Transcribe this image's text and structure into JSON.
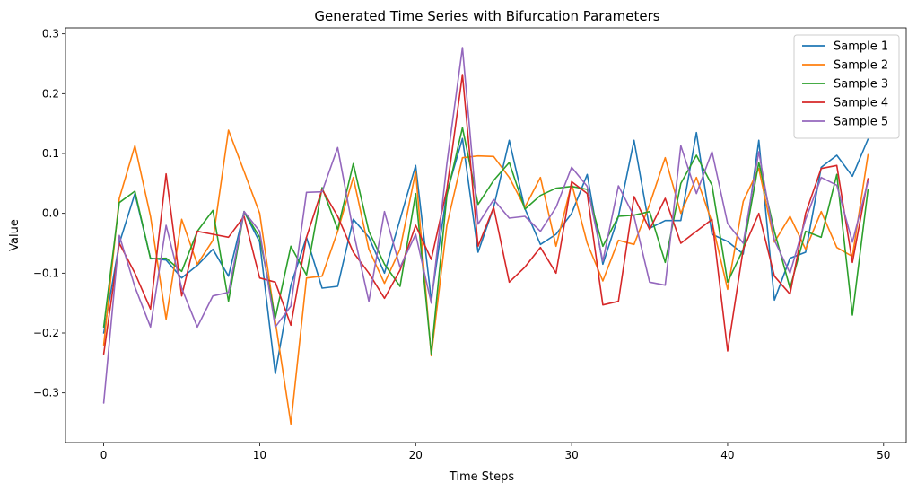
{
  "chart_data": {
    "type": "line",
    "title": "Generated Time Series with Bifurcation Parameters",
    "xlabel": "Time Steps",
    "ylabel": "Value",
    "xlim": [
      -2.45,
      51.45
    ],
    "ylim": [
      -0.383,
      0.31
    ],
    "xticks": [
      0,
      10,
      20,
      30,
      40,
      50
    ],
    "yticks": [
      -0.3,
      -0.2,
      -0.1,
      0.0,
      0.1,
      0.2,
      0.3
    ],
    "xtick_labels": [
      "0",
      "10",
      "20",
      "30",
      "40",
      "50"
    ],
    "ytick_labels": [
      "−0.3",
      "−0.2",
      "−0.1",
      "0.0",
      "0.1",
      "0.2",
      "0.3"
    ],
    "grid": false,
    "legend_position": "top-right",
    "x": [
      0,
      1,
      2,
      3,
      4,
      5,
      6,
      7,
      8,
      9,
      10,
      11,
      12,
      13,
      14,
      15,
      16,
      17,
      18,
      19,
      20,
      21,
      22,
      23,
      24,
      25,
      26,
      27,
      28,
      29,
      30,
      31,
      32,
      33,
      34,
      35,
      36,
      37,
      38,
      39,
      40,
      41,
      42,
      43,
      44,
      45,
      46,
      47,
      48,
      49
    ],
    "series": [
      {
        "name": "Sample 1",
        "color": "#1f77b4",
        "values": [
          -0.2,
          -0.05,
          0.033,
          -0.075,
          -0.078,
          -0.108,
          -0.087,
          -0.06,
          -0.105,
          0.003,
          -0.048,
          -0.268,
          -0.12,
          -0.04,
          -0.125,
          -0.122,
          -0.01,
          -0.04,
          -0.1,
          -0.01,
          0.08,
          -0.145,
          0.035,
          0.125,
          -0.065,
          0.01,
          0.122,
          0.008,
          -0.052,
          -0.035,
          0.0,
          0.065,
          -0.085,
          -0.005,
          0.122,
          -0.025,
          -0.012,
          -0.012,
          0.135,
          -0.035,
          -0.047,
          -0.068,
          0.122,
          -0.145,
          -0.075,
          -0.065,
          0.077,
          0.097,
          0.062,
          0.124
        ]
      },
      {
        "name": "Sample 2",
        "color": "#ff7f0e",
        "values": [
          -0.22,
          0.025,
          0.113,
          -0.005,
          -0.177,
          -0.01,
          -0.085,
          -0.045,
          0.139,
          0.07,
          0.0,
          -0.18,
          -0.352,
          -0.108,
          -0.105,
          -0.03,
          0.06,
          -0.06,
          -0.117,
          -0.06,
          0.07,
          -0.238,
          -0.02,
          0.093,
          0.096,
          0.095,
          0.06,
          0.01,
          0.06,
          -0.055,
          0.05,
          -0.05,
          -0.113,
          -0.045,
          -0.052,
          0.015,
          0.093,
          0.0,
          0.06,
          -0.015,
          -0.127,
          0.02,
          0.075,
          -0.048,
          -0.005,
          -0.06,
          0.003,
          -0.057,
          -0.072,
          0.098
        ]
      },
      {
        "name": "Sample 3",
        "color": "#2ca02c",
        "values": [
          -0.19,
          0.018,
          0.037,
          -0.076,
          -0.075,
          -0.097,
          -0.03,
          0.005,
          -0.147,
          0.003,
          -0.04,
          -0.175,
          -0.055,
          -0.103,
          0.043,
          -0.027,
          0.083,
          -0.03,
          -0.085,
          -0.122,
          0.033,
          -0.235,
          0.03,
          0.143,
          0.015,
          0.055,
          0.085,
          0.007,
          0.03,
          0.042,
          0.045,
          0.04,
          -0.055,
          -0.005,
          -0.003,
          0.003,
          -0.082,
          0.05,
          0.097,
          0.047,
          -0.115,
          -0.06,
          0.085,
          -0.03,
          -0.125,
          -0.03,
          -0.04,
          0.065,
          -0.17,
          0.04
        ]
      },
      {
        "name": "Sample 4",
        "color": "#d62728",
        "values": [
          -0.235,
          -0.05,
          -0.1,
          -0.16,
          0.066,
          -0.138,
          -0.03,
          -0.035,
          -0.04,
          -0.005,
          -0.108,
          -0.115,
          -0.187,
          -0.04,
          0.04,
          -0.005,
          -0.065,
          -0.1,
          -0.142,
          -0.095,
          -0.02,
          -0.077,
          0.04,
          0.232,
          -0.055,
          0.01,
          -0.115,
          -0.09,
          -0.057,
          -0.1,
          0.053,
          0.033,
          -0.153,
          -0.147,
          0.028,
          -0.027,
          0.025,
          -0.05,
          -0.03,
          -0.01,
          -0.23,
          -0.06,
          0.0,
          -0.105,
          -0.135,
          0.0,
          0.075,
          0.08,
          -0.082,
          0.058
        ]
      },
      {
        "name": "Sample 5",
        "color": "#9467bd",
        "values": [
          -0.317,
          -0.037,
          -0.123,
          -0.19,
          -0.02,
          -0.125,
          -0.19,
          -0.138,
          -0.132,
          0.003,
          -0.03,
          -0.19,
          -0.155,
          0.035,
          0.036,
          0.11,
          -0.03,
          -0.147,
          0.003,
          -0.09,
          -0.035,
          -0.15,
          0.083,
          0.277,
          -0.018,
          0.023,
          -0.008,
          -0.005,
          -0.03,
          0.01,
          0.077,
          0.045,
          -0.08,
          0.046,
          -0.005,
          -0.115,
          -0.12,
          0.113,
          0.033,
          0.103,
          -0.017,
          -0.05,
          0.103,
          -0.045,
          -0.1,
          -0.01,
          0.06,
          0.047,
          -0.048,
          0.053
        ]
      }
    ]
  }
}
